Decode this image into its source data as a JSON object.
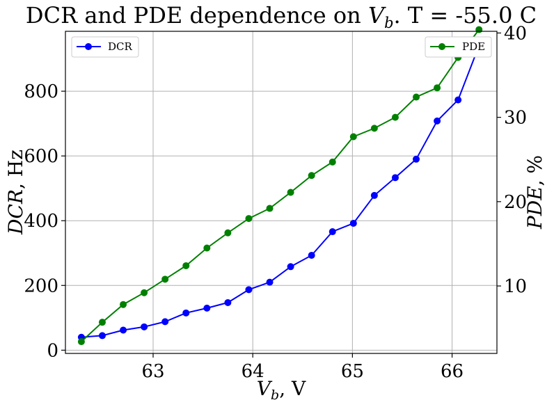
{
  "chart_data": {
    "type": "line",
    "title": "DCR and PDE dependence on V_b. T = -55.0 C",
    "title_parts": {
      "prefix": "DCR and PDE dependence on ",
      "var": "V",
      "sub": "b",
      "suffix": ". T = -55.0 C"
    },
    "xlabel": {
      "var": "V",
      "sub": "b",
      "suffix": ", V"
    },
    "ylabel_left": {
      "var": "DCR",
      "suffix": ", Hz"
    },
    "ylabel_right": {
      "var": "PDE",
      "suffix": ", %"
    },
    "xlim": [
      62.12,
      66.45
    ],
    "ylim_left": [
      -10,
      985
    ],
    "ylim_right": [
      2.0,
      40.2
    ],
    "xticks": [
      63,
      64,
      65,
      66
    ],
    "yticks_left": [
      0,
      200,
      400,
      600,
      800
    ],
    "yticks_right": [
      10,
      20,
      30,
      40
    ],
    "grid": true,
    "x": [
      62.28,
      62.49,
      62.7,
      62.91,
      63.12,
      63.33,
      63.54,
      63.75,
      63.96,
      64.17,
      64.38,
      64.59,
      64.8,
      65.01,
      65.22,
      65.43,
      65.64,
      65.85,
      66.06,
      66.27
    ],
    "series": [
      {
        "name": "DCR",
        "axis": "left",
        "color": "#0000ff",
        "values": [
          40,
          45,
          62,
          72,
          88,
          115,
          130,
          147,
          187,
          210,
          258,
          293,
          366,
          392,
          478,
          533,
          590,
          708,
          773,
          940
        ]
      },
      {
        "name": "PDE",
        "axis": "right",
        "color": "#008000",
        "values": [
          3.4,
          5.7,
          7.8,
          9.2,
          10.8,
          12.4,
          14.5,
          16.3,
          18.0,
          19.2,
          21.1,
          23.1,
          24.7,
          27.7,
          28.7,
          30.0,
          32.4,
          33.5,
          37.1,
          40.4
        ]
      }
    ],
    "legend": [
      {
        "label": "DCR",
        "placement": "top-left"
      },
      {
        "label": "PDE",
        "placement": "top-right"
      }
    ]
  }
}
